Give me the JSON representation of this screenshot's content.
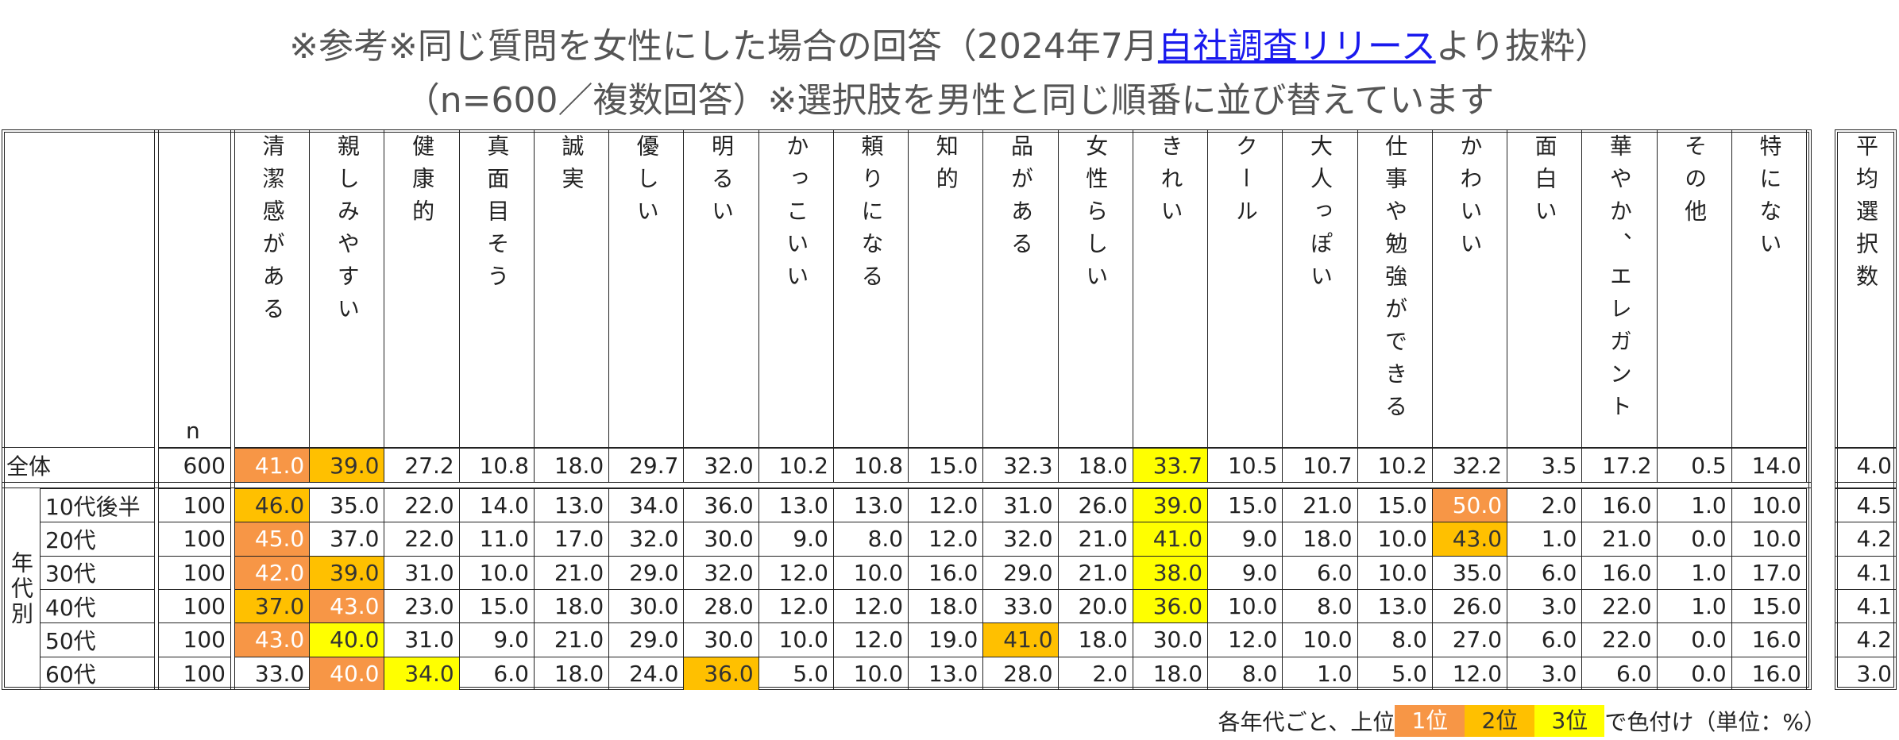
{
  "title": {
    "before": "※参考※同じ質問を女性にした場合の回答（2024年7月",
    "link": "自社調査リリース",
    "after": "より抜粋）"
  },
  "subtitle": "（n=600／複数回答）※選択肢を男性と同じ順番に並び替えています",
  "table": {
    "n_header": "n",
    "columns": [
      "清潔感がある",
      "親しみやすい",
      "健康的",
      "真面目そう",
      "誠実",
      "優しい",
      "明るい",
      "かっこいい",
      "頼りになる",
      "知的",
      "品がある",
      "女性らしい",
      "きれい",
      "クール",
      "大人っぽい",
      "仕事や勉強ができる",
      "かわいい",
      "面白い",
      "華やか、エレガント",
      "その他",
      "特にない"
    ],
    "average_header": "平均選択数",
    "total_row": {
      "label": "全体",
      "n": "600",
      "values": [
        "41.0",
        "39.0",
        "27.2",
        "10.8",
        "18.0",
        "29.7",
        "32.0",
        "10.2",
        "10.8",
        "15.0",
        "32.3",
        "18.0",
        "33.7",
        "10.5",
        "10.7",
        "10.2",
        "32.2",
        "3.5",
        "17.2",
        "0.5",
        "14.0"
      ],
      "average": "4.0",
      "ranks": [
        1,
        2,
        null,
        null,
        null,
        null,
        null,
        null,
        null,
        null,
        null,
        null,
        3,
        null,
        null,
        null,
        null,
        null,
        null,
        null,
        null
      ]
    },
    "group_label": "年代別",
    "rows": [
      {
        "label": "10代後半",
        "n": "100",
        "values": [
          "46.0",
          "35.0",
          "22.0",
          "14.0",
          "13.0",
          "34.0",
          "36.0",
          "13.0",
          "13.0",
          "12.0",
          "31.0",
          "26.0",
          "39.0",
          "15.0",
          "21.0",
          "15.0",
          "50.0",
          "2.0",
          "16.0",
          "1.0",
          "10.0"
        ],
        "average": "4.5",
        "ranks": [
          2,
          null,
          null,
          null,
          null,
          null,
          null,
          null,
          null,
          null,
          null,
          null,
          3,
          null,
          null,
          null,
          1,
          null,
          null,
          null,
          null
        ]
      },
      {
        "label": "20代",
        "n": "100",
        "values": [
          "45.0",
          "37.0",
          "22.0",
          "11.0",
          "17.0",
          "32.0",
          "30.0",
          "9.0",
          "8.0",
          "12.0",
          "32.0",
          "21.0",
          "41.0",
          "9.0",
          "18.0",
          "10.0",
          "43.0",
          "1.0",
          "21.0",
          "0.0",
          "10.0"
        ],
        "average": "4.2",
        "ranks": [
          1,
          null,
          null,
          null,
          null,
          null,
          null,
          null,
          null,
          null,
          null,
          null,
          3,
          null,
          null,
          null,
          2,
          null,
          null,
          null,
          null
        ]
      },
      {
        "label": "30代",
        "n": "100",
        "values": [
          "42.0",
          "39.0",
          "31.0",
          "10.0",
          "21.0",
          "29.0",
          "32.0",
          "12.0",
          "10.0",
          "16.0",
          "29.0",
          "21.0",
          "38.0",
          "9.0",
          "6.0",
          "10.0",
          "35.0",
          "6.0",
          "16.0",
          "1.0",
          "17.0"
        ],
        "average": "4.1",
        "ranks": [
          1,
          2,
          null,
          null,
          null,
          null,
          null,
          null,
          null,
          null,
          null,
          null,
          3,
          null,
          null,
          null,
          null,
          null,
          null,
          null,
          null
        ]
      },
      {
        "label": "40代",
        "n": "100",
        "values": [
          "37.0",
          "43.0",
          "23.0",
          "15.0",
          "18.0",
          "30.0",
          "28.0",
          "12.0",
          "12.0",
          "18.0",
          "33.0",
          "20.0",
          "36.0",
          "10.0",
          "8.0",
          "13.0",
          "26.0",
          "3.0",
          "22.0",
          "1.0",
          "15.0"
        ],
        "average": "4.1",
        "ranks": [
          2,
          1,
          null,
          null,
          null,
          null,
          null,
          null,
          null,
          null,
          null,
          null,
          3,
          null,
          null,
          null,
          null,
          null,
          null,
          null,
          null
        ]
      },
      {
        "label": "50代",
        "n": "100",
        "values": [
          "43.0",
          "40.0",
          "31.0",
          "9.0",
          "21.0",
          "29.0",
          "30.0",
          "10.0",
          "12.0",
          "19.0",
          "41.0",
          "18.0",
          "30.0",
          "12.0",
          "10.0",
          "8.0",
          "27.0",
          "6.0",
          "22.0",
          "0.0",
          "16.0"
        ],
        "average": "4.2",
        "ranks": [
          1,
          3,
          null,
          null,
          null,
          null,
          null,
          null,
          null,
          null,
          2,
          null,
          null,
          null,
          null,
          null,
          null,
          null,
          null,
          null,
          null
        ]
      },
      {
        "label": "60代",
        "n": "100",
        "values": [
          "33.0",
          "40.0",
          "34.0",
          "6.0",
          "18.0",
          "24.0",
          "36.0",
          "5.0",
          "10.0",
          "13.0",
          "28.0",
          "2.0",
          "18.0",
          "8.0",
          "1.0",
          "5.0",
          "12.0",
          "3.0",
          "6.0",
          "0.0",
          "16.0"
        ],
        "average": "3.0",
        "ranks": [
          null,
          1,
          3,
          null,
          null,
          null,
          2,
          null,
          null,
          null,
          null,
          null,
          null,
          null,
          null,
          null,
          null,
          null,
          null,
          null,
          null
        ]
      }
    ]
  },
  "footnote": {
    "before": "各年代ごと、上位",
    "legend": [
      {
        "label": "1位",
        "color": "#F79646",
        "text_color": "#ffffff"
      },
      {
        "label": "2位",
        "color": "#FFC000",
        "text_color": "#333333"
      },
      {
        "label": "3位",
        "color": "#FFFF00",
        "text_color": "#333333"
      }
    ],
    "after": "で色付け（単位：%）"
  }
}
